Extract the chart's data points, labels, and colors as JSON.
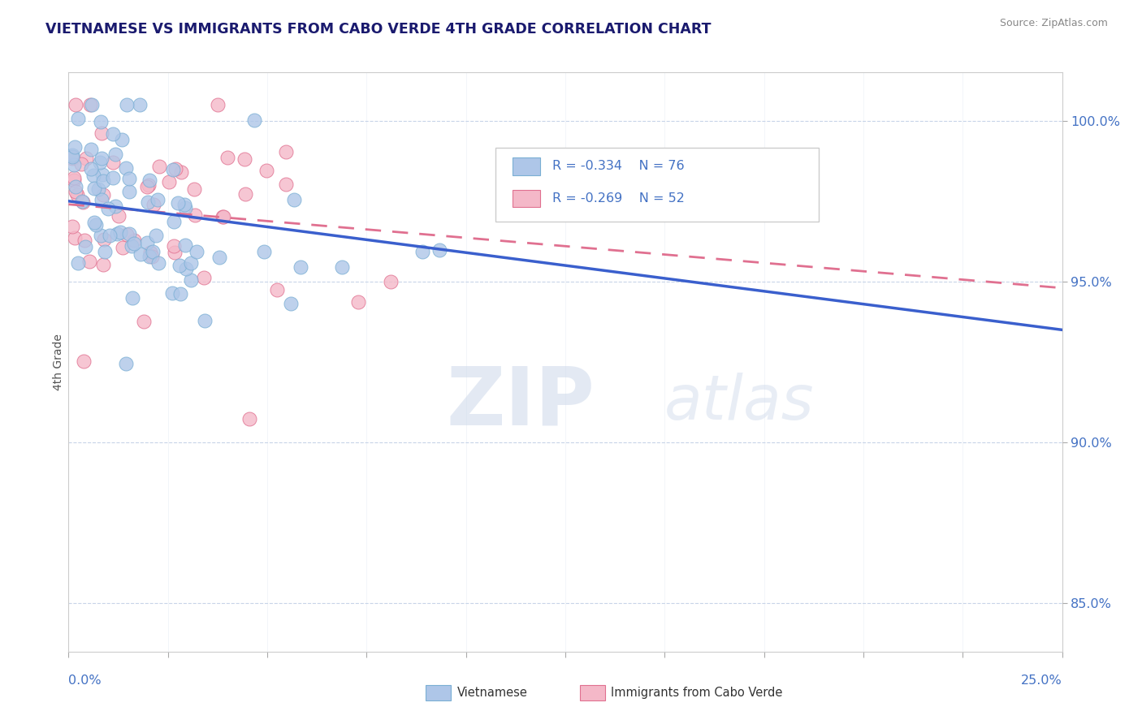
{
  "title": "VIETNAMESE VS IMMIGRANTS FROM CABO VERDE 4TH GRADE CORRELATION CHART",
  "source_text": "Source: ZipAtlas.com",
  "ylabel": "4th Grade",
  "ylabel_right_ticks": [
    "85.0%",
    "90.0%",
    "95.0%",
    "100.0%"
  ],
  "ylabel_right_values": [
    0.85,
    0.9,
    0.95,
    1.0
  ],
  "xlim": [
    0.0,
    0.25
  ],
  "ylim": [
    0.835,
    1.015
  ],
  "series": [
    {
      "name": "Vietnamese",
      "R": -0.334,
      "N": 76,
      "color": "#aec6e8",
      "edge_color": "#7aafd4",
      "trend_color": "#3a5fcd",
      "trend_style": "solid",
      "trend_x": [
        0.0,
        0.25
      ],
      "trend_y": [
        0.975,
        0.935
      ]
    },
    {
      "name": "Immigrants from Cabo Verde",
      "R": -0.269,
      "N": 52,
      "color": "#f4b8c8",
      "edge_color": "#e07090",
      "trend_color": "#e07090",
      "trend_style": "dashed",
      "trend_x": [
        0.0,
        0.25
      ],
      "trend_y": [
        0.974,
        0.948
      ]
    }
  ],
  "watermark_zip": "ZIP",
  "watermark_atlas": "atlas",
  "background_color": "#ffffff",
  "grid_color": "#c8d4e8",
  "title_color": "#1a1a6e",
  "axis_label_color": "#4472c4",
  "legend_color": "#4472c4"
}
